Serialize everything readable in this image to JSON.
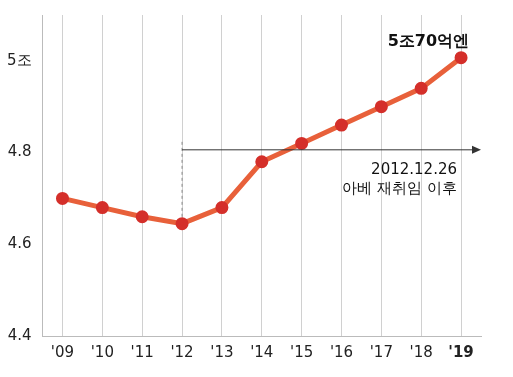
{
  "chart_data": {
    "type": "line",
    "categories": [
      "'09",
      "'10",
      "'11",
      "'12",
      "'13",
      "'14",
      "'15",
      "'16",
      "'17",
      "'18",
      "'19"
    ],
    "values": [
      4.7,
      4.68,
      4.66,
      4.645,
      4.68,
      4.78,
      4.82,
      4.86,
      4.9,
      4.94,
      5.007
    ],
    "color": "#e8603a",
    "marker": "circle",
    "ylim": [
      4.4,
      5.1
    ],
    "yticks": [
      4.4,
      4.6,
      4.8,
      {
        "value": 5,
        "label": "5조"
      }
    ],
    "grid": "x",
    "annotations": [
      {
        "text": [
          "5조70억엔"
        ],
        "category": "'19"
      },
      {
        "text": [
          "2012.12.26",
          "아베 재취임 이후"
        ],
        "category": "'12",
        "arrow": "right"
      }
    ]
  }
}
